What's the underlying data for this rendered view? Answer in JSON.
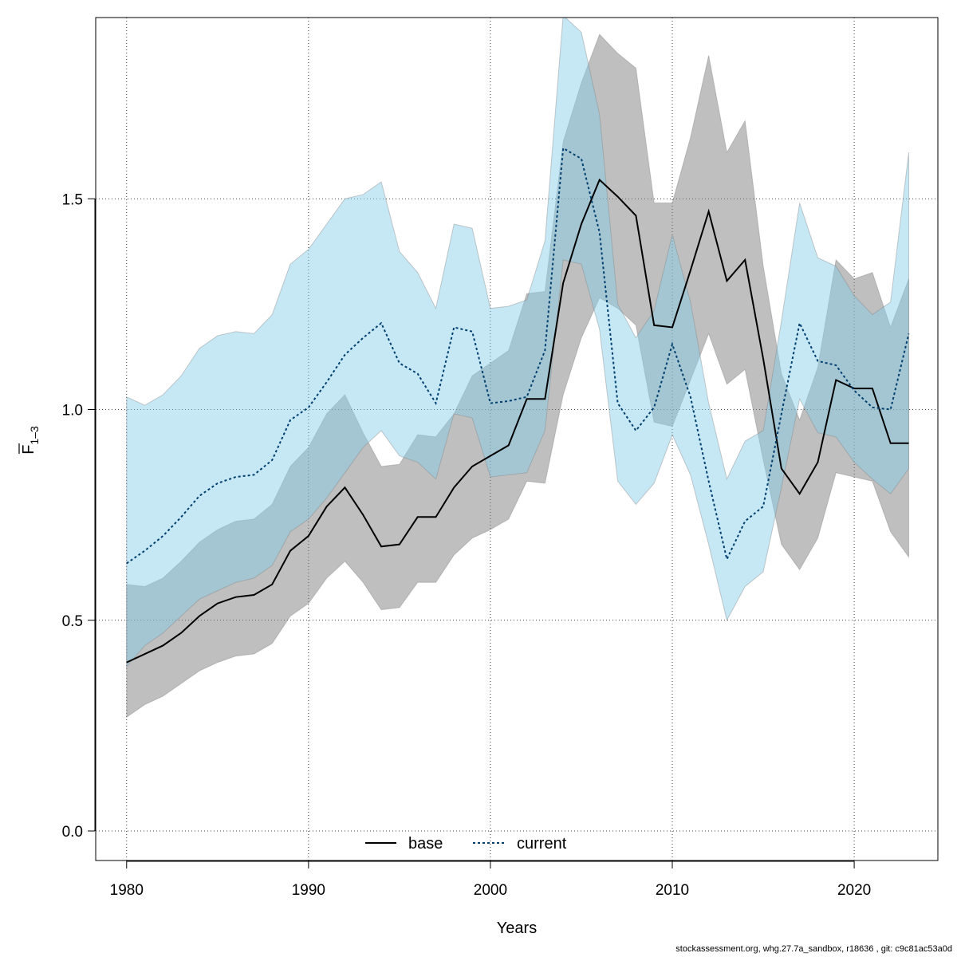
{
  "chart_data": {
    "type": "line",
    "xlabel": "Years",
    "ylabel_main": "F",
    "ylabel_sub": "1–3",
    "xlim": [
      1978.3,
      2024.6
    ],
    "ylim": [
      -0.07,
      1.93
    ],
    "xticks": [
      1980,
      1990,
      2000,
      2010,
      2020
    ],
    "yticks": [
      0.0,
      0.5,
      1.0,
      1.5
    ],
    "ytick_labels": [
      "0.0",
      "0.5",
      "1.0",
      "1.5"
    ],
    "grid": true,
    "legend_position": "bottom-center",
    "x": [
      1980,
      1981,
      1982,
      1983,
      1984,
      1985,
      1986,
      1987,
      1988,
      1989,
      1990,
      1991,
      1992,
      1993,
      1994,
      1995,
      1996,
      1997,
      1998,
      1999,
      2000,
      2001,
      2002,
      2003,
      2004,
      2005,
      2006,
      2007,
      2008,
      2009,
      2010,
      2011,
      2012,
      2013,
      2014,
      2015,
      2016,
      2017,
      2018,
      2019,
      2020,
      2021,
      2022,
      2023
    ],
    "series": [
      {
        "name": "base",
        "line_color": "#000000",
        "band_color": "#808080",
        "dash": "solid",
        "values": [
          0.4,
          0.42,
          0.44,
          0.47,
          0.51,
          0.54,
          0.555,
          0.56,
          0.585,
          0.665,
          0.7,
          0.77,
          0.815,
          0.75,
          0.675,
          0.68,
          0.745,
          0.745,
          0.815,
          0.865,
          0.89,
          0.915,
          1.025,
          1.025,
          1.3,
          1.44,
          1.545,
          1.505,
          1.46,
          1.2,
          1.195,
          1.33,
          1.47,
          1.305,
          1.355,
          1.12,
          0.86,
          0.8,
          0.875,
          1.07,
          1.05,
          1.05,
          0.92,
          0.92
        ],
        "lower": [
          0.27,
          0.3,
          0.32,
          0.35,
          0.38,
          0.4,
          0.415,
          0.42,
          0.445,
          0.51,
          0.54,
          0.6,
          0.64,
          0.59,
          0.525,
          0.53,
          0.59,
          0.59,
          0.655,
          0.695,
          0.715,
          0.74,
          0.83,
          0.825,
          1.035,
          1.17,
          1.265,
          1.24,
          1.2,
          0.97,
          0.96,
          1.07,
          1.18,
          1.06,
          1.095,
          0.88,
          0.68,
          0.62,
          0.695,
          0.85,
          0.84,
          0.83,
          0.71,
          0.65
        ],
        "upper": [
          0.585,
          0.58,
          0.6,
          0.64,
          0.685,
          0.715,
          0.735,
          0.74,
          0.775,
          0.865,
          0.91,
          0.99,
          1.035,
          0.945,
          0.865,
          0.87,
          0.94,
          0.935,
          0.99,
          1.08,
          1.11,
          1.14,
          1.275,
          1.28,
          1.635,
          1.775,
          1.89,
          1.845,
          1.81,
          1.49,
          1.49,
          1.645,
          1.84,
          1.61,
          1.685,
          1.34,
          1.085,
          0.975,
          1.1,
          1.355,
          1.31,
          1.325,
          1.195,
          1.31
        ]
      },
      {
        "name": "current",
        "line_color": "#003f6e",
        "band_color": "#87ceeb",
        "dash": "dotted",
        "values": [
          0.635,
          0.665,
          0.7,
          0.745,
          0.795,
          0.825,
          0.84,
          0.845,
          0.88,
          0.975,
          1.005,
          1.065,
          1.13,
          1.17,
          1.205,
          1.11,
          1.085,
          1.015,
          1.195,
          1.185,
          1.015,
          1.02,
          1.03,
          1.14,
          1.62,
          1.595,
          1.42,
          1.015,
          0.95,
          1.005,
          1.155,
          1.03,
          0.83,
          0.645,
          0.735,
          0.77,
          0.99,
          1.205,
          1.115,
          1.105,
          1.045,
          1.005,
          1.0,
          1.18
        ],
        "lower": [
          0.39,
          0.44,
          0.47,
          0.51,
          0.55,
          0.57,
          0.59,
          0.6,
          0.63,
          0.71,
          0.74,
          0.79,
          0.85,
          0.91,
          0.95,
          0.89,
          0.875,
          0.835,
          0.99,
          0.98,
          0.84,
          0.845,
          0.85,
          0.95,
          1.355,
          1.345,
          1.19,
          0.83,
          0.775,
          0.825,
          0.94,
          0.845,
          0.68,
          0.5,
          0.58,
          0.615,
          0.815,
          1.025,
          0.945,
          0.935,
          0.875,
          0.835,
          0.8,
          0.86
        ],
        "upper": [
          1.03,
          1.01,
          1.035,
          1.08,
          1.145,
          1.175,
          1.185,
          1.18,
          1.225,
          1.345,
          1.38,
          1.44,
          1.5,
          1.51,
          1.54,
          1.375,
          1.325,
          1.24,
          1.44,
          1.43,
          1.24,
          1.245,
          1.26,
          1.4,
          1.935,
          1.895,
          1.7,
          1.25,
          1.17,
          1.235,
          1.415,
          1.255,
          1.015,
          0.835,
          0.925,
          0.95,
          1.21,
          1.49,
          1.36,
          1.34,
          1.27,
          1.225,
          1.255,
          1.61
        ]
      }
    ]
  },
  "footer_text": "stockassessment.org, whg.27.7a_sandbox, r18636 , git: c9c81ac53a0d"
}
